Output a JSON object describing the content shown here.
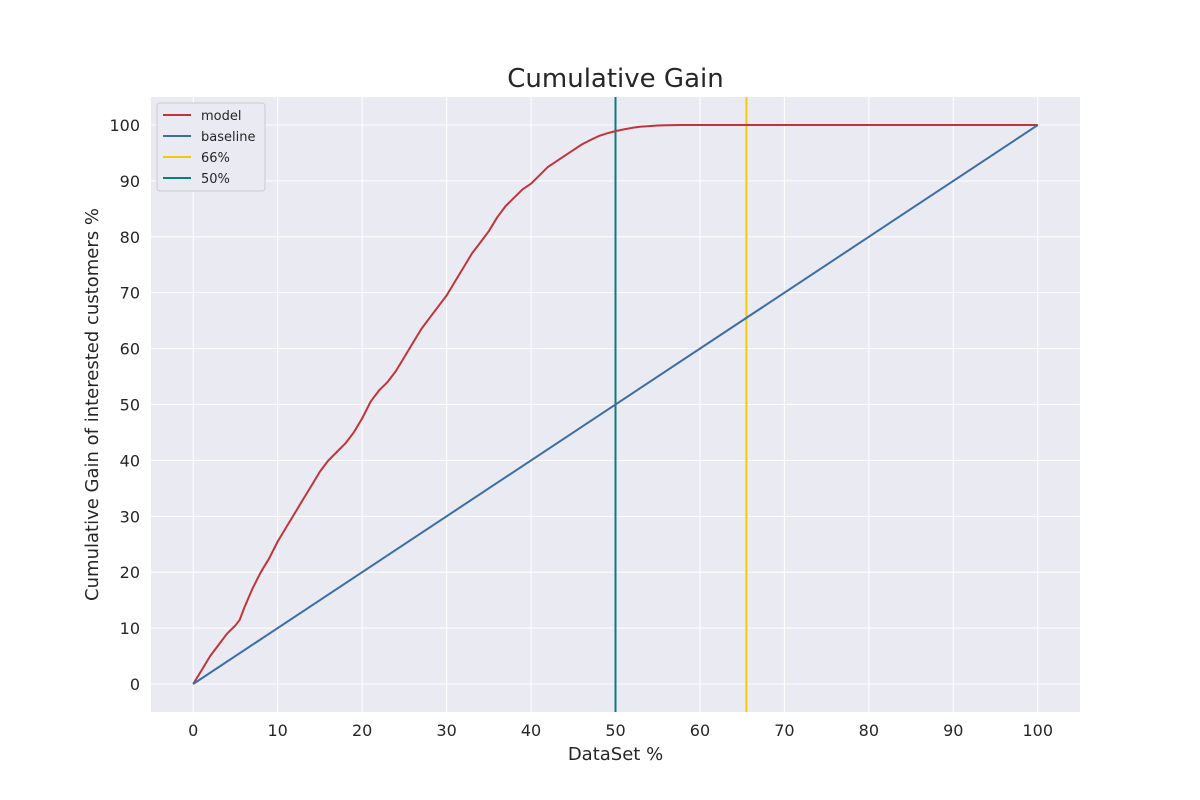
{
  "chart_data": {
    "type": "line",
    "title": "Cumulative Gain",
    "xlabel": "DataSet %",
    "ylabel": "Cumulative Gain of interested customers %",
    "xlim": [
      -5,
      105
    ],
    "ylim": [
      -5,
      105
    ],
    "xticks": [
      0,
      10,
      20,
      30,
      40,
      50,
      60,
      70,
      80,
      90,
      100
    ],
    "yticks": [
      0,
      10,
      20,
      30,
      40,
      50,
      60,
      70,
      80,
      90,
      100
    ],
    "grid": true,
    "legend_position": "top-left",
    "series": [
      {
        "name": "model",
        "color": "#c0343a",
        "x": [
          0,
          1,
          2,
          3,
          4,
          5,
          5.5,
          6,
          7,
          8,
          9,
          10,
          11,
          12,
          13,
          14,
          15,
          16,
          17,
          18,
          19,
          20,
          21,
          22,
          23,
          24,
          25,
          26,
          27,
          28,
          29,
          30,
          31,
          32,
          33,
          34,
          35,
          36,
          37,
          38,
          39,
          40,
          41,
          42,
          43,
          44,
          45,
          46,
          47,
          48,
          49,
          50,
          51,
          52,
          53,
          54,
          55,
          56,
          58,
          60,
          65,
          70,
          80,
          90,
          100
        ],
        "y": [
          0,
          2.5,
          5,
          7,
          9,
          10.5,
          11.5,
          13.5,
          17,
          20,
          22.5,
          25.5,
          28,
          30.5,
          33,
          35.5,
          38,
          40,
          41.5,
          43,
          45,
          47.5,
          50.5,
          52.5,
          54,
          56,
          58.5,
          61,
          63.5,
          65.5,
          67.5,
          69.5,
          72,
          74.5,
          77,
          79,
          81,
          83.5,
          85.5,
          87,
          88.5,
          89.5,
          91,
          92.5,
          93.5,
          94.5,
          95.5,
          96.5,
          97.3,
          98,
          98.5,
          98.9,
          99.2,
          99.5,
          99.7,
          99.8,
          99.9,
          99.95,
          100,
          100,
          100,
          100,
          100,
          100,
          100
        ]
      },
      {
        "name": "baseline",
        "color": "#3a6ea5",
        "x": [
          0,
          100
        ],
        "y": [
          0,
          100
        ]
      }
    ],
    "vlines": [
      {
        "name": "66%",
        "x": 65.5,
        "color": "#f2cb05"
      },
      {
        "name": "50%",
        "x": 50,
        "color": "#0f7b7b"
      }
    ],
    "legend": [
      {
        "label": "model",
        "color": "#c0343a"
      },
      {
        "label": "baseline",
        "color": "#3a6ea5"
      },
      {
        "label": "66%",
        "color": "#f2cb05"
      },
      {
        "label": "50%",
        "color": "#0f7b7b"
      }
    ],
    "colors": {
      "plot_background": "#eaeaf2",
      "grid": "#ffffff",
      "text": "#262626"
    }
  }
}
